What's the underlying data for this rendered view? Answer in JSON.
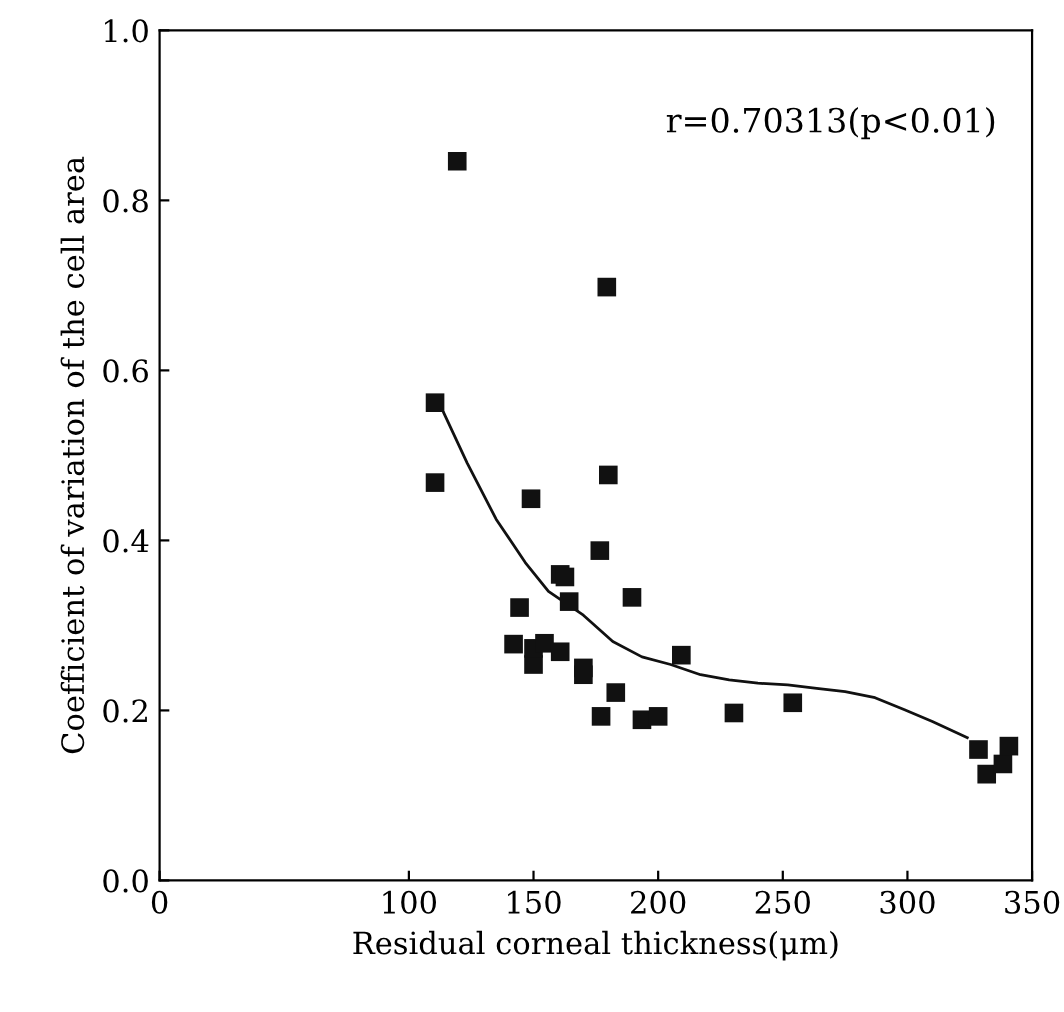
{
  "chart_data": {
    "type": "scatter",
    "xlabel": "Residual corneal thickness(μm)",
    "ylabel": "Coefficient of variation of the cell area",
    "annotations": [
      "r=0.70313(p<0.01)"
    ],
    "xlim": [
      0,
      350
    ],
    "xticks": [
      0,
      100,
      150,
      200,
      250,
      300,
      350
    ],
    "ylim": [
      0,
      1.0
    ],
    "yticks": [
      {
        "value": 0,
        "label": "0.0"
      },
      {
        "value": 0.2,
        "label": "0.2"
      },
      {
        "value": 0.4,
        "label": "0.4"
      },
      {
        "value": 0.6,
        "label": "0.6"
      },
      {
        "value": 0.8,
        "label": "0.8"
      },
      {
        "value": 1.0,
        "label": "1.0"
      }
    ],
    "grid": false,
    "marker": "square",
    "series": [
      {
        "color": "#111111",
        "x": [
          110.5,
          110.5,
          119.4,
          149,
          144.4,
          142,
          150,
          150,
          154.4,
          160.7,
          160.7,
          162.6,
          164.3,
          170,
          170,
          176.6,
          179.4,
          180,
          177.1,
          183,
          189.5,
          193.5,
          200,
          209.3,
          230.4,
          254,
          328.5,
          331.8,
          338.3,
          340.7
        ],
        "values": [
          0.562,
          0.468,
          0.846,
          0.449,
          0.321,
          0.278,
          0.254,
          0.273,
          0.279,
          0.269,
          0.36,
          0.357,
          0.328,
          0.242,
          0.25,
          0.388,
          0.698,
          0.477,
          0.193,
          0.221,
          0.333,
          0.189,
          0.193,
          0.265,
          0.197,
          0.209,
          0.154,
          0.125,
          0.137,
          0.158
        ]
      },
      {
        "type": "line",
        "color": "#111111",
        "marker": "none",
        "line_style": "solid",
        "x": [
          114,
          123.4,
          135,
          146.7,
          156,
          170,
          181.8,
          193.5,
          205,
          217,
          228.5,
          240,
          252,
          263.6,
          275,
          287,
          298.6,
          310,
          324
        ],
        "values": [
          0.55,
          0.491,
          0.425,
          0.374,
          0.34,
          0.312,
          0.281,
          0.263,
          0.254,
          0.242,
          0.236,
          0.232,
          0.23,
          0.226,
          0.222,
          0.215,
          0.201,
          0.187,
          0.168
        ]
      }
    ]
  }
}
